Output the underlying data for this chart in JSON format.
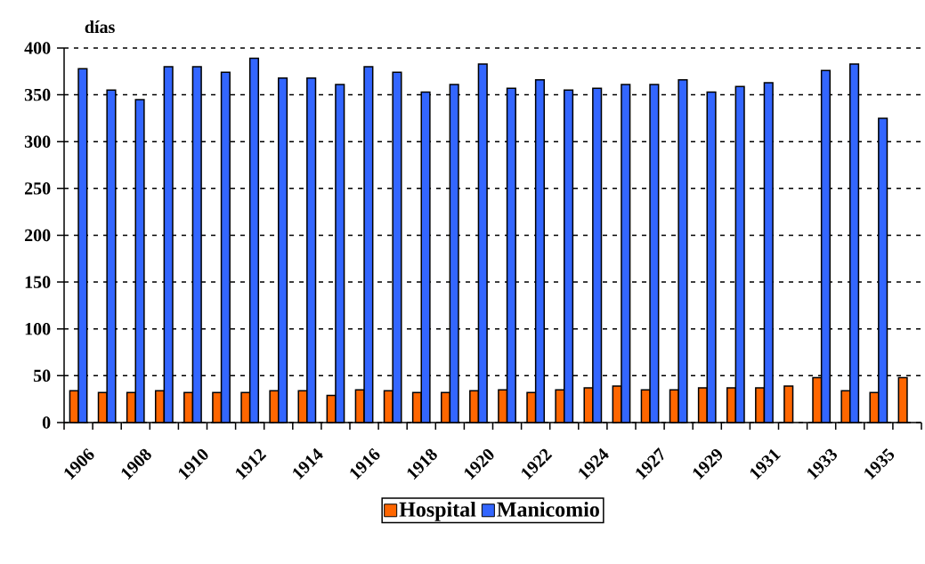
{
  "chart_data": {
    "type": "bar",
    "ylabel": "días",
    "categories": [
      "1906",
      null,
      "1908",
      null,
      "1910",
      null,
      "1912",
      null,
      "1914",
      null,
      "1916",
      null,
      "1918",
      null,
      "1920",
      null,
      "1922",
      null,
      "1924",
      null,
      "1927",
      null,
      "1929",
      null,
      "1931",
      null,
      "1933",
      null,
      "1935",
      null
    ],
    "series": [
      {
        "name": "Hospital",
        "color": "#ff6600",
        "values": [
          34,
          32,
          32,
          34,
          32,
          32,
          32,
          34,
          34,
          29,
          35,
          34,
          32,
          32,
          34,
          35,
          32,
          35,
          37,
          39,
          35,
          35,
          37,
          37,
          37,
          39,
          48,
          34,
          32,
          48
        ]
      },
      {
        "name": "Manicomio",
        "color": "#3366ff",
        "values": [
          378,
          355,
          345,
          380,
          380,
          374,
          389,
          368,
          368,
          361,
          380,
          374,
          353,
          361,
          383,
          357,
          366,
          355,
          357,
          361,
          361,
          366,
          353,
          359,
          363,
          null,
          376,
          383,
          325,
          null
        ]
      }
    ],
    "ylim": [
      0,
      400
    ],
    "yticks": [
      0,
      50,
      100,
      150,
      200,
      250,
      300,
      350,
      400
    ],
    "grid": "y",
    "legend": "bottom"
  }
}
